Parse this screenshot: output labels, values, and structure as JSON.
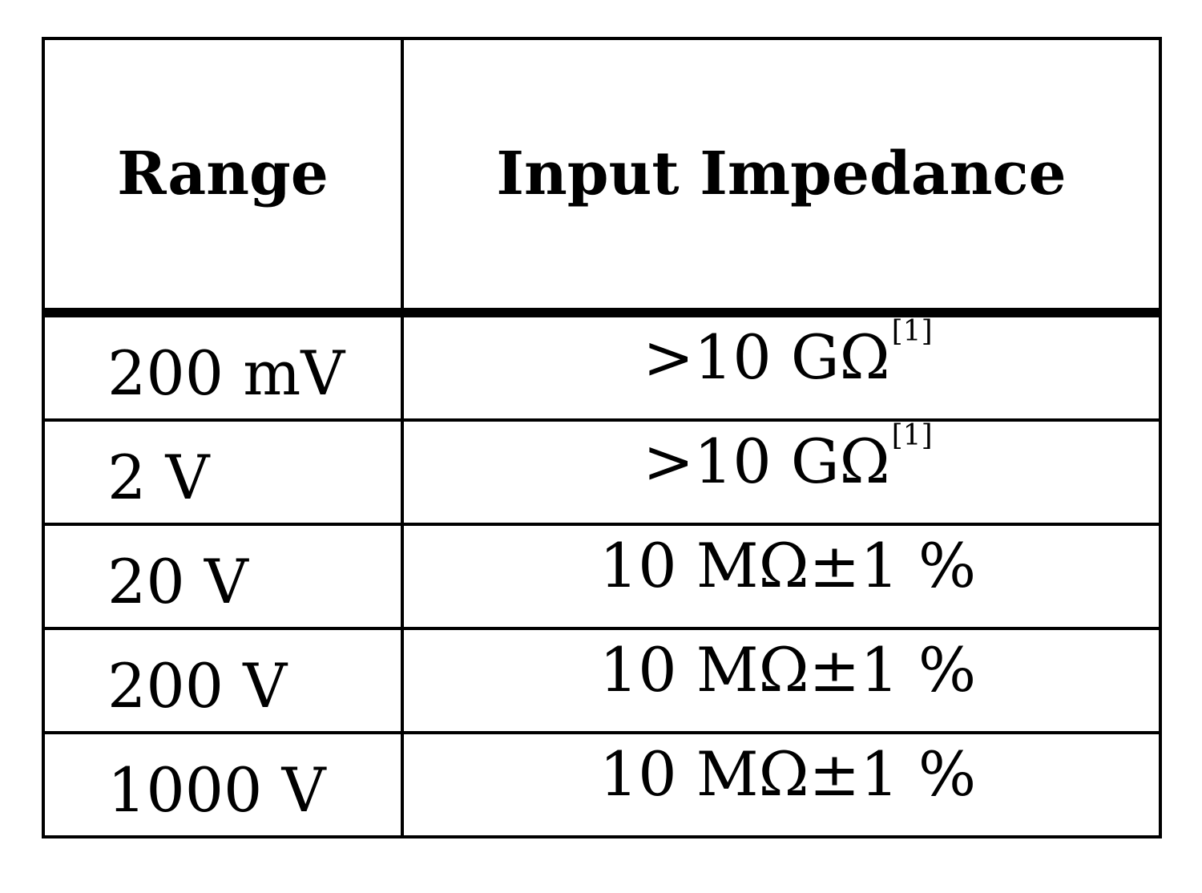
{
  "table": {
    "headers": {
      "range": "Range",
      "impedance": "Input Impedance"
    },
    "rows": [
      {
        "range": "200 mV",
        "impedance": ">10 GΩ",
        "footnote": "[1]"
      },
      {
        "range": "2 V",
        "impedance": ">10 GΩ",
        "footnote": "[1]"
      },
      {
        "range": "20 V",
        "impedance": "10 MΩ±1 %",
        "footnote": ""
      },
      {
        "range": "200 V",
        "impedance": "10 MΩ±1 %",
        "footnote": ""
      },
      {
        "range": "1000 V",
        "impedance": "10 MΩ±1 %",
        "footnote": ""
      }
    ]
  }
}
